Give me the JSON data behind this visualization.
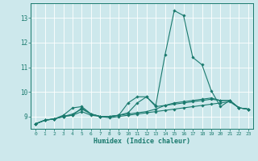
{
  "xlabel": "Humidex (Indice chaleur)",
  "xlim": [
    -0.5,
    23.5
  ],
  "ylim": [
    8.5,
    13.6
  ],
  "yticks": [
    9,
    10,
    11,
    12,
    13
  ],
  "xticks": [
    0,
    1,
    2,
    3,
    4,
    5,
    6,
    7,
    8,
    9,
    10,
    11,
    12,
    13,
    14,
    15,
    16,
    17,
    18,
    19,
    20,
    21,
    22,
    23
  ],
  "bg_color": "#cde8ec",
  "line_color": "#1a7a6e",
  "grid_color": "#ffffff",
  "lines": [
    {
      "x": [
        0,
        1,
        2,
        3,
        4,
        5,
        6,
        7,
        8,
        9,
        10,
        11,
        12,
        13,
        14,
        15,
        16,
        17,
        18,
        19,
        20,
        21,
        22,
        23
      ],
      "y": [
        8.7,
        8.85,
        8.9,
        9.0,
        9.05,
        9.35,
        9.1,
        9.0,
        9.0,
        9.05,
        9.15,
        9.55,
        9.8,
        9.45,
        11.5,
        13.3,
        13.1,
        11.4,
        11.1,
        10.05,
        9.4,
        9.65,
        9.35,
        9.3
      ]
    },
    {
      "x": [
        0,
        1,
        2,
        3,
        4,
        5,
        6,
        7,
        8,
        9,
        10,
        11,
        12,
        13,
        14,
        15,
        16,
        17,
        18,
        19,
        20,
        21,
        22,
        23
      ],
      "y": [
        8.7,
        8.85,
        8.9,
        9.0,
        9.1,
        9.3,
        9.1,
        9.0,
        9.0,
        9.05,
        9.55,
        9.8,
        9.8,
        9.4,
        9.45,
        9.5,
        9.55,
        9.6,
        9.65,
        9.7,
        9.65,
        9.65,
        9.35,
        9.3
      ]
    },
    {
      "x": [
        0,
        1,
        2,
        3,
        4,
        5,
        6,
        7,
        8,
        9,
        10,
        11,
        12,
        13,
        14,
        15,
        16,
        17,
        18,
        19,
        20,
        21,
        22,
        23
      ],
      "y": [
        8.7,
        8.85,
        8.9,
        9.0,
        9.05,
        9.2,
        9.05,
        9.0,
        8.95,
        9.0,
        9.05,
        9.1,
        9.15,
        9.2,
        9.25,
        9.3,
        9.35,
        9.4,
        9.45,
        9.5,
        9.55,
        9.6,
        9.35,
        9.3
      ]
    },
    {
      "x": [
        0,
        1,
        2,
        3,
        4,
        5,
        6,
        7,
        8,
        9,
        10,
        11,
        12,
        13,
        14,
        15,
        16,
        17,
        18,
        19,
        20,
        21,
        22,
        23
      ],
      "y": [
        8.7,
        8.85,
        8.9,
        9.05,
        9.35,
        9.4,
        9.1,
        9.0,
        9.0,
        9.05,
        9.1,
        9.15,
        9.2,
        9.3,
        9.45,
        9.55,
        9.6,
        9.65,
        9.7,
        9.75,
        9.65,
        9.65,
        9.35,
        9.3
      ]
    }
  ]
}
